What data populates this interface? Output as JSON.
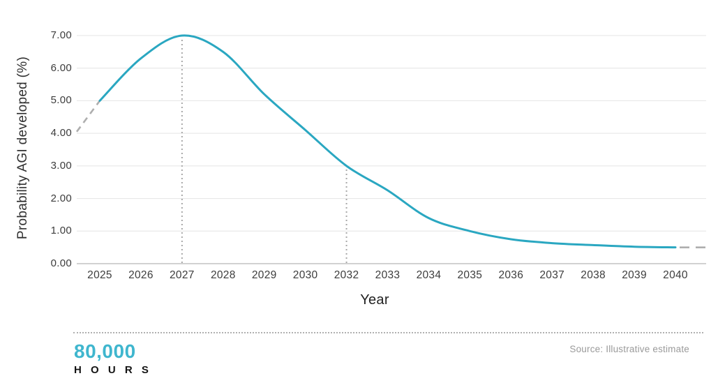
{
  "chart_data": {
    "type": "line",
    "title": "",
    "xlabel": "Year",
    "ylabel": "Probability AGI developed (%)",
    "x": [
      "2025",
      "2026",
      "2027",
      "2028",
      "2029",
      "2030",
      "2032",
      "2033",
      "2034",
      "2035",
      "2036",
      "2037",
      "2038",
      "2039",
      "2040"
    ],
    "series": [
      {
        "name": "probability_agi_developed_pct",
        "values": [
          5.0,
          6.3,
          7.0,
          6.5,
          5.2,
          4.1,
          3.0,
          2.25,
          1.4,
          1.0,
          0.75,
          0.63,
          0.57,
          0.52,
          0.5
        ]
      }
    ],
    "y_tick_labels": [
      "0.00",
      "1.00",
      "2.00",
      "3.00",
      "4.00",
      "5.00",
      "6.00",
      "7.00"
    ],
    "ylim": [
      0,
      7
    ],
    "grid": "horizontal",
    "legend": "none",
    "dashed_extensions": {
      "pre": {
        "note": "dashed segment entering plot from left edge",
        "edge_value": 4.05,
        "joins_at": "2025"
      },
      "post": {
        "note": "dashed flat segment exiting plot at right edge",
        "edge_value": 0.5,
        "starts_at": "2040"
      }
    },
    "vlines": [
      {
        "x": "2027",
        "top_value": 7.0,
        "style": "dotted"
      },
      {
        "x": "2032",
        "top_value": 3.0,
        "style": "dotted"
      }
    ],
    "colors": {
      "line": "#2aa7c1",
      "dashed": "#aeaeae",
      "grid": "#e4e4e4",
      "axis": "#c2c2c2",
      "dotted_vline": "#a8a8a8"
    }
  },
  "footer": {
    "logo_top": "80,000",
    "logo_bottom": "H O U R S",
    "logo_color": "#3fb6ce",
    "source": "Source: Illustrative estimate"
  }
}
